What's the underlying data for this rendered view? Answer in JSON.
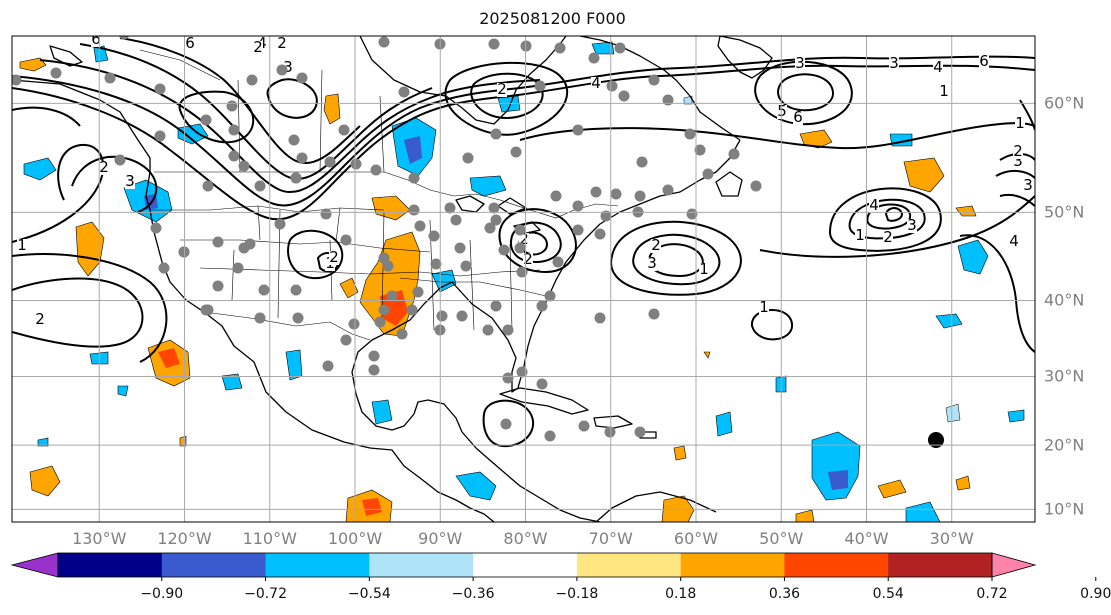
{
  "title": "2025081200 F000",
  "map": {
    "projection": "lat-lon",
    "lon_range": [
      -140,
      -20
    ],
    "lat_range": [
      8,
      65
    ],
    "grid": true,
    "grid_color": "#a9a9a9",
    "lon_labels": [
      "130°W",
      "120°W",
      "110°W",
      "100°W",
      "90°W",
      "80°W",
      "70°W",
      "60°W",
      "50°W",
      "40°W",
      "30°W"
    ],
    "lat_labels": [
      "60°N",
      "50°N",
      "40°N",
      "30°N",
      "20°N",
      "10°N"
    ],
    "contour_labels": [
      "6",
      "6",
      "4",
      "2",
      "3",
      "2",
      "4",
      "2",
      "3",
      "6",
      "5",
      "6",
      "3",
      "4",
      "6",
      "1",
      "1",
      "3",
      "3",
      "2",
      "2",
      "1",
      "2",
      "3",
      "4",
      "3",
      "2",
      "1",
      "2",
      "1",
      "2",
      "2",
      "3",
      "1",
      "1",
      "2",
      "4"
    ],
    "station_marker_color": "#808080",
    "marker_color": "#000000"
  },
  "colorbar": {
    "ticks": [
      "−0.90",
      "−0.72",
      "−0.54",
      "−0.36",
      "−0.18",
      "0.18",
      "0.36",
      "0.54",
      "0.72",
      "0.90"
    ],
    "colors": [
      "#9932cc",
      "#00008b",
      "#3a5bd0",
      "#00bfff",
      "#aee3f8",
      "#ffffff",
      "#ffe680",
      "#ffa500",
      "#ff4500",
      "#b22222",
      "#ff82ab"
    ]
  }
}
